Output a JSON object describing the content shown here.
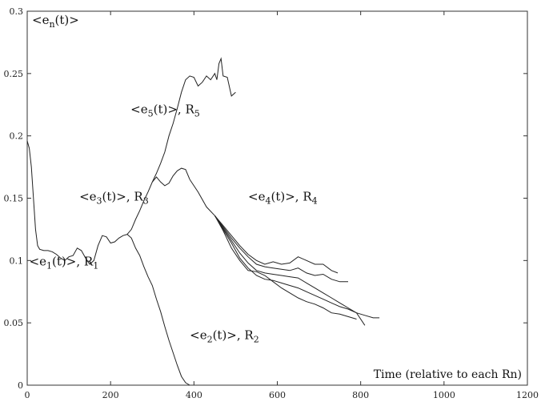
{
  "chart_data": {
    "type": "line",
    "title": "",
    "ylabel": "<e_n(t)>",
    "xlabel": "Time (relative to each Rn)",
    "xlim": [
      0,
      1200
    ],
    "ylim": [
      0,
      0.3
    ],
    "xticks": [
      0,
      200,
      400,
      600,
      800,
      1000,
      1200
    ],
    "yticks": [
      0,
      0.05,
      0.1,
      0.15,
      0.2,
      0.25,
      0.3
    ],
    "xtick_labels": [
      "0",
      "200",
      "400",
      "600",
      "800",
      "1000",
      "1200"
    ],
    "ytick_labels": [
      "0",
      "0.05",
      "0.1",
      "0.15",
      "0.2",
      "0.25",
      "0.3"
    ],
    "grid": false,
    "ylabel_parts": {
      "open": "<e",
      "sub": "n",
      "close": "(t)>"
    },
    "annotations": [
      {
        "id": "ann-1",
        "open": "<e",
        "sub": "1",
        "mid": "(t)>, R",
        "sub2": "1",
        "x": 5,
        "y": 0.096
      },
      {
        "id": "ann-2",
        "open": "<e",
        "sub": "2",
        "mid": "(t)>, R",
        "sub2": "2",
        "x": 390,
        "y": 0.037
      },
      {
        "id": "ann-3",
        "open": "<e",
        "sub": "3",
        "mid": "(t)>, R",
        "sub2": "3",
        "x": 125,
        "y": 0.148
      },
      {
        "id": "ann-4",
        "open": "<e",
        "sub": "4",
        "mid": "(t)>, R",
        "sub2": "4",
        "x": 530,
        "y": 0.148
      },
      {
        "id": "ann-5",
        "open": "<e",
        "sub": "5",
        "mid": "(t)>, R",
        "sub2": "5",
        "x": 248,
        "y": 0.218
      }
    ],
    "series": [
      {
        "id": "e1",
        "x": [
          0,
          5,
          10,
          15,
          20,
          25,
          30,
          40,
          50,
          60,
          70,
          80,
          90,
          100,
          110,
          120,
          130,
          140,
          150,
          160,
          170,
          180,
          190,
          200,
          210,
          220,
          230,
          240
        ],
        "y": [
          0.196,
          0.19,
          0.175,
          0.15,
          0.125,
          0.112,
          0.109,
          0.108,
          0.108,
          0.107,
          0.105,
          0.102,
          0.1,
          0.103,
          0.104,
          0.11,
          0.108,
          0.102,
          0.097,
          0.1,
          0.112,
          0.12,
          0.119,
          0.114,
          0.115,
          0.118,
          0.12,
          0.121
        ]
      },
      {
        "id": "e2",
        "x": [
          240,
          250,
          260,
          270,
          280,
          290,
          300,
          310,
          320,
          330,
          340,
          350,
          360,
          370,
          380,
          390
        ],
        "y": [
          0.121,
          0.118,
          0.11,
          0.104,
          0.095,
          0.087,
          0.08,
          0.069,
          0.059,
          0.047,
          0.036,
          0.026,
          0.016,
          0.007,
          0.002,
          0.0
        ]
      },
      {
        "id": "e3",
        "x": [
          240,
          250,
          260,
          270,
          280,
          290,
          300,
          310,
          320,
          330,
          340,
          350,
          360,
          370,
          380,
          390
        ],
        "y": [
          0.121,
          0.125,
          0.133,
          0.14,
          0.148,
          0.155,
          0.163,
          0.167,
          0.163,
          0.16,
          0.162,
          0.168,
          0.172,
          0.174,
          0.173,
          0.165
        ]
      },
      {
        "id": "e4a",
        "x": [
          390,
          410,
          430,
          450,
          470,
          490,
          510,
          530,
          550,
          570,
          590,
          610,
          630,
          650,
          670,
          690,
          710,
          730,
          745
        ],
        "y": [
          0.165,
          0.155,
          0.143,
          0.136,
          0.128,
          0.12,
          0.112,
          0.105,
          0.1,
          0.097,
          0.099,
          0.097,
          0.098,
          0.103,
          0.1,
          0.097,
          0.097,
          0.092,
          0.09
        ]
      },
      {
        "id": "e4b",
        "x": [
          450,
          470,
          490,
          510,
          530,
          550,
          570,
          590,
          610,
          630,
          650,
          670,
          690,
          710,
          730,
          750,
          770
        ],
        "y": [
          0.136,
          0.127,
          0.118,
          0.11,
          0.103,
          0.097,
          0.095,
          0.094,
          0.093,
          0.092,
          0.094,
          0.09,
          0.088,
          0.089,
          0.085,
          0.083,
          0.083
        ]
      },
      {
        "id": "e4c",
        "x": [
          450,
          470,
          490,
          510,
          530,
          550,
          570,
          590,
          610,
          630,
          650,
          670,
          690,
          710,
          730,
          750,
          770,
          790,
          810
        ],
        "y": [
          0.136,
          0.126,
          0.116,
          0.106,
          0.098,
          0.092,
          0.09,
          0.089,
          0.088,
          0.087,
          0.086,
          0.082,
          0.078,
          0.074,
          0.07,
          0.066,
          0.062,
          0.058,
          0.048
        ]
      },
      {
        "id": "e4d",
        "x": [
          450,
          470,
          490,
          510,
          530,
          550,
          570,
          590,
          610,
          630,
          650,
          670,
          690,
          710,
          730,
          750,
          770,
          790,
          810,
          830,
          845
        ],
        "y": [
          0.136,
          0.125,
          0.114,
          0.102,
          0.094,
          0.088,
          0.085,
          0.084,
          0.082,
          0.08,
          0.078,
          0.075,
          0.072,
          0.069,
          0.066,
          0.063,
          0.061,
          0.058,
          0.056,
          0.054,
          0.054
        ]
      },
      {
        "id": "e4e",
        "x": [
          450,
          470,
          490,
          510,
          530,
          550,
          570,
          590,
          610,
          630,
          650,
          670,
          690,
          710,
          730,
          750,
          770,
          790
        ],
        "y": [
          0.136,
          0.124,
          0.11,
          0.1,
          0.092,
          0.091,
          0.088,
          0.083,
          0.078,
          0.074,
          0.07,
          0.067,
          0.065,
          0.062,
          0.058,
          0.057,
          0.055,
          0.053
        ]
      },
      {
        "id": "e5",
        "x": [
          300,
          310,
          320,
          330,
          340,
          350,
          360,
          370,
          380,
          390,
          400,
          410,
          420,
          430,
          440,
          450,
          455,
          460,
          465,
          470,
          480,
          490,
          500
        ],
        "y": [
          0.163,
          0.17,
          0.178,
          0.187,
          0.2,
          0.21,
          0.222,
          0.235,
          0.245,
          0.248,
          0.247,
          0.24,
          0.243,
          0.248,
          0.245,
          0.25,
          0.245,
          0.258,
          0.262,
          0.248,
          0.247,
          0.232,
          0.235
        ]
      }
    ]
  }
}
